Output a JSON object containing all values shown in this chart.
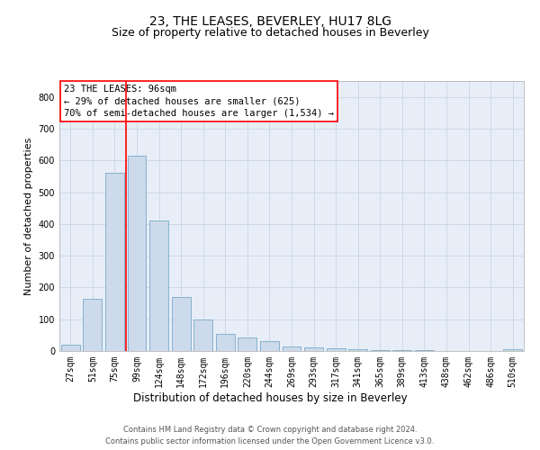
{
  "title": "23, THE LEASES, BEVERLEY, HU17 8LG",
  "subtitle": "Size of property relative to detached houses in Beverley",
  "xlabel": "Distribution of detached houses by size in Beverley",
  "ylabel": "Number of detached properties",
  "bar_color": "#ccdaeb",
  "bar_edge_color": "#7aaac8",
  "vline_color": "red",
  "categories": [
    "27sqm",
    "51sqm",
    "75sqm",
    "99sqm",
    "124sqm",
    "148sqm",
    "172sqm",
    "196sqm",
    "220sqm",
    "244sqm",
    "269sqm",
    "293sqm",
    "317sqm",
    "341sqm",
    "365sqm",
    "389sqm",
    "413sqm",
    "438sqm",
    "462sqm",
    "486sqm",
    "510sqm"
  ],
  "values": [
    20,
    165,
    560,
    615,
    410,
    170,
    100,
    55,
    43,
    30,
    13,
    10,
    9,
    5,
    3,
    3,
    2,
    0,
    0,
    0,
    5
  ],
  "ylim": [
    0,
    850
  ],
  "yticks": [
    0,
    100,
    200,
    300,
    400,
    500,
    600,
    700,
    800
  ],
  "annotation_text": "23 THE LEASES: 96sqm\n← 29% of detached houses are smaller (625)\n70% of semi-detached houses are larger (1,534) →",
  "annotation_box_color": "white",
  "annotation_box_edge_color": "red",
  "grid_color": "#cdd8ea",
  "background_color": "#e8eef8",
  "footer": "Contains HM Land Registry data © Crown copyright and database right 2024.\nContains public sector information licensed under the Open Government Licence v3.0.",
  "title_fontsize": 10,
  "subtitle_fontsize": 9,
  "xlabel_fontsize": 8.5,
  "ylabel_fontsize": 8,
  "tick_fontsize": 7,
  "annotation_fontsize": 7.5,
  "footer_fontsize": 6
}
